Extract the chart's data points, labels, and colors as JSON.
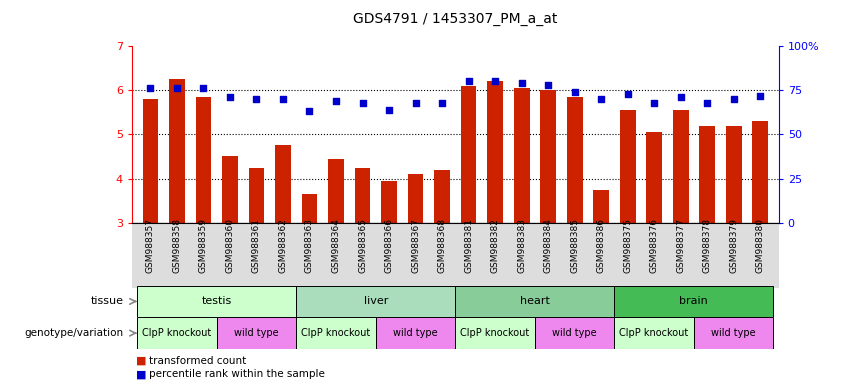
{
  "title": "GDS4791 / 1453307_PM_a_at",
  "samples": [
    "GSM988357",
    "GSM988358",
    "GSM988359",
    "GSM988360",
    "GSM988361",
    "GSM988362",
    "GSM988363",
    "GSM988364",
    "GSM988365",
    "GSM988366",
    "GSM988367",
    "GSM988368",
    "GSM988381",
    "GSM988382",
    "GSM988383",
    "GSM988384",
    "GSM988385",
    "GSM988386",
    "GSM988375",
    "GSM988376",
    "GSM988377",
    "GSM988378",
    "GSM988379",
    "GSM988380"
  ],
  "bar_values": [
    5.8,
    6.25,
    5.85,
    4.5,
    4.25,
    4.75,
    3.65,
    4.45,
    4.25,
    3.95,
    4.1,
    4.2,
    6.1,
    6.2,
    6.05,
    6.0,
    5.85,
    3.75,
    5.55,
    5.05,
    5.55,
    5.2,
    5.2,
    5.3
  ],
  "percentile_values": [
    76,
    76,
    76,
    71,
    70,
    70,
    63,
    69,
    68,
    64,
    68,
    68,
    80,
    80,
    79,
    78,
    74,
    70,
    73,
    68,
    71,
    68,
    70,
    72
  ],
  "tissues": [
    {
      "label": "testis",
      "start": 0,
      "end": 6,
      "color": "#ccffcc"
    },
    {
      "label": "liver",
      "start": 6,
      "end": 12,
      "color": "#aaeebb"
    },
    {
      "label": "heart",
      "start": 12,
      "end": 18,
      "color": "#88dd99"
    },
    {
      "label": "brain",
      "start": 18,
      "end": 24,
      "color": "#44cc66"
    }
  ],
  "genotypes": [
    {
      "label": "ClpP knockout",
      "start": 0,
      "end": 3,
      "color": "#ccffcc"
    },
    {
      "label": "wild type",
      "start": 3,
      "end": 6,
      "color": "#ee88ee"
    },
    {
      "label": "ClpP knockout",
      "start": 6,
      "end": 9,
      "color": "#ccffcc"
    },
    {
      "label": "wild type",
      "start": 9,
      "end": 12,
      "color": "#ee88ee"
    },
    {
      "label": "ClpP knockout",
      "start": 12,
      "end": 15,
      "color": "#ccffcc"
    },
    {
      "label": "wild type",
      "start": 15,
      "end": 18,
      "color": "#ee88ee"
    },
    {
      "label": "ClpP knockout",
      "start": 18,
      "end": 21,
      "color": "#ccffcc"
    },
    {
      "label": "wild type",
      "start": 21,
      "end": 24,
      "color": "#ee88ee"
    }
  ],
  "bar_color": "#cc2200",
  "dot_color": "#0000cc",
  "ylim_left": [
    3,
    7
  ],
  "ylim_right": [
    0,
    100
  ],
  "yticks_left": [
    3,
    4,
    5,
    6,
    7
  ],
  "yticks_right": [
    0,
    25,
    50,
    75,
    100
  ],
  "ytick_labels_right": [
    "0",
    "25",
    "50",
    "75",
    "100%"
  ],
  "background_color": "#ffffff"
}
